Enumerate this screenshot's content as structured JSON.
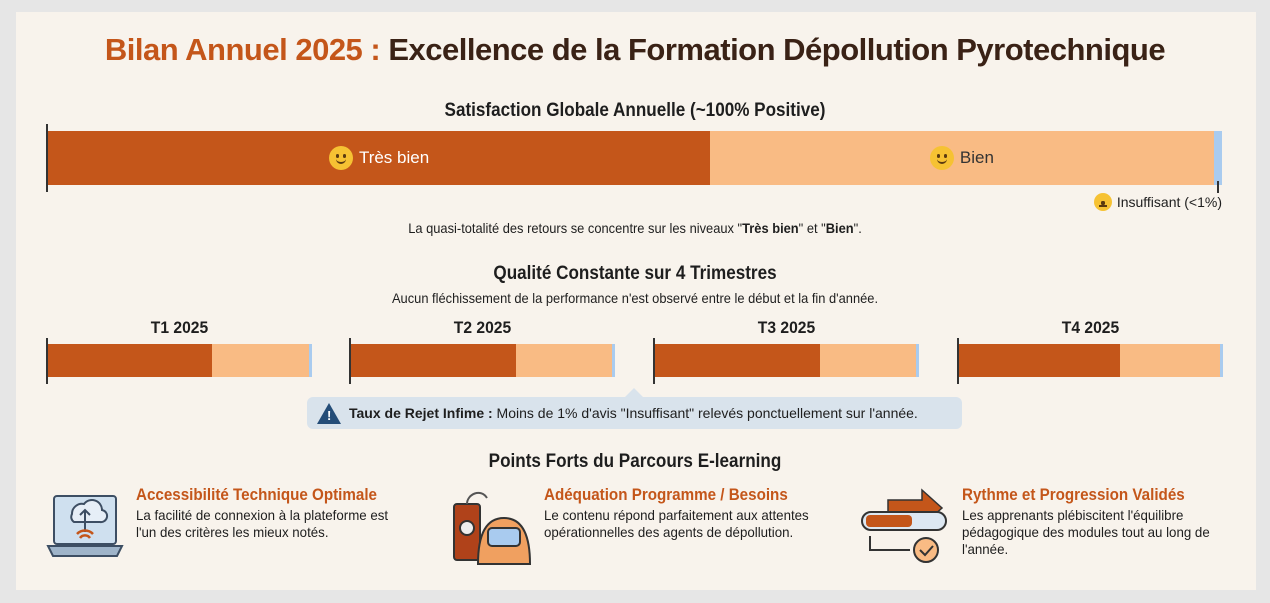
{
  "title": {
    "accent": "Bilan Annuel 2025 :",
    "main": " Excellence de la Formation Dépollution Pyrotechnique"
  },
  "global": {
    "heading": "Satisfaction Globale Annuelle (~100% Positive)",
    "segments": [
      {
        "label": "Très bien",
        "percent": 56.4,
        "color": "#c4561a",
        "icon": "smiling-face-icon"
      },
      {
        "label": "Bien",
        "percent": 42.9,
        "color": "#f9bb84",
        "icon": "slight-smile-icon"
      },
      {
        "label": "Insuffisant (<1%)",
        "percent": 0.7,
        "color": "#a9cbef",
        "icon": "neutral-face-icon"
      }
    ],
    "note_pre": "La quasi-totalité des retours se concentre sur les niveaux \"",
    "note_b1": "Très bien",
    "note_mid": "\" et \"",
    "note_b2": "Bien",
    "note_post": "\"."
  },
  "quarters": {
    "heading": "Qualité Constante sur 4 Trimestres",
    "subtitle": "Aucun fléchissement de la performance n'est observé entre le début et la fin d'année.",
    "items": [
      {
        "label": "T1 2025",
        "tres_bien": 62,
        "bien": 37,
        "insuffisant": 1
      },
      {
        "label": "T2 2025",
        "tres_bien": 62.5,
        "bien": 36.5,
        "insuffisant": 1
      },
      {
        "label": "T3 2025",
        "tres_bien": 62.5,
        "bien": 36.5,
        "insuffisant": 1
      },
      {
        "label": "T4 2025",
        "tres_bien": 61,
        "bien": 38,
        "insuffisant": 1
      }
    ],
    "alert_bold": "Taux de Rejet Infime :",
    "alert_text": " Moins de 1% d'avis \"Insuffisant\" relevés ponctuellement sur l'année."
  },
  "features": {
    "heading": "Points Forts du Parcours E-learning",
    "items": [
      {
        "title": "Accessibilité Technique Optimale",
        "text": "La facilité de connexion à la plateforme est l'un des critères les mieux notés.",
        "icon": "laptop-cloud-icon"
      },
      {
        "title": "Adéquation Programme / Besoins",
        "text": "Le contenu répond parfaitement aux attentes opérationnelles des agents de dépollution.",
        "icon": "bomb-suit-icon"
      },
      {
        "title": "Rythme et Progression Validés",
        "text": "Les apprenants plébiscitent l'équilibre pédagogique des modules tout au long de l'année.",
        "icon": "progress-arrow-icon"
      }
    ]
  }
}
